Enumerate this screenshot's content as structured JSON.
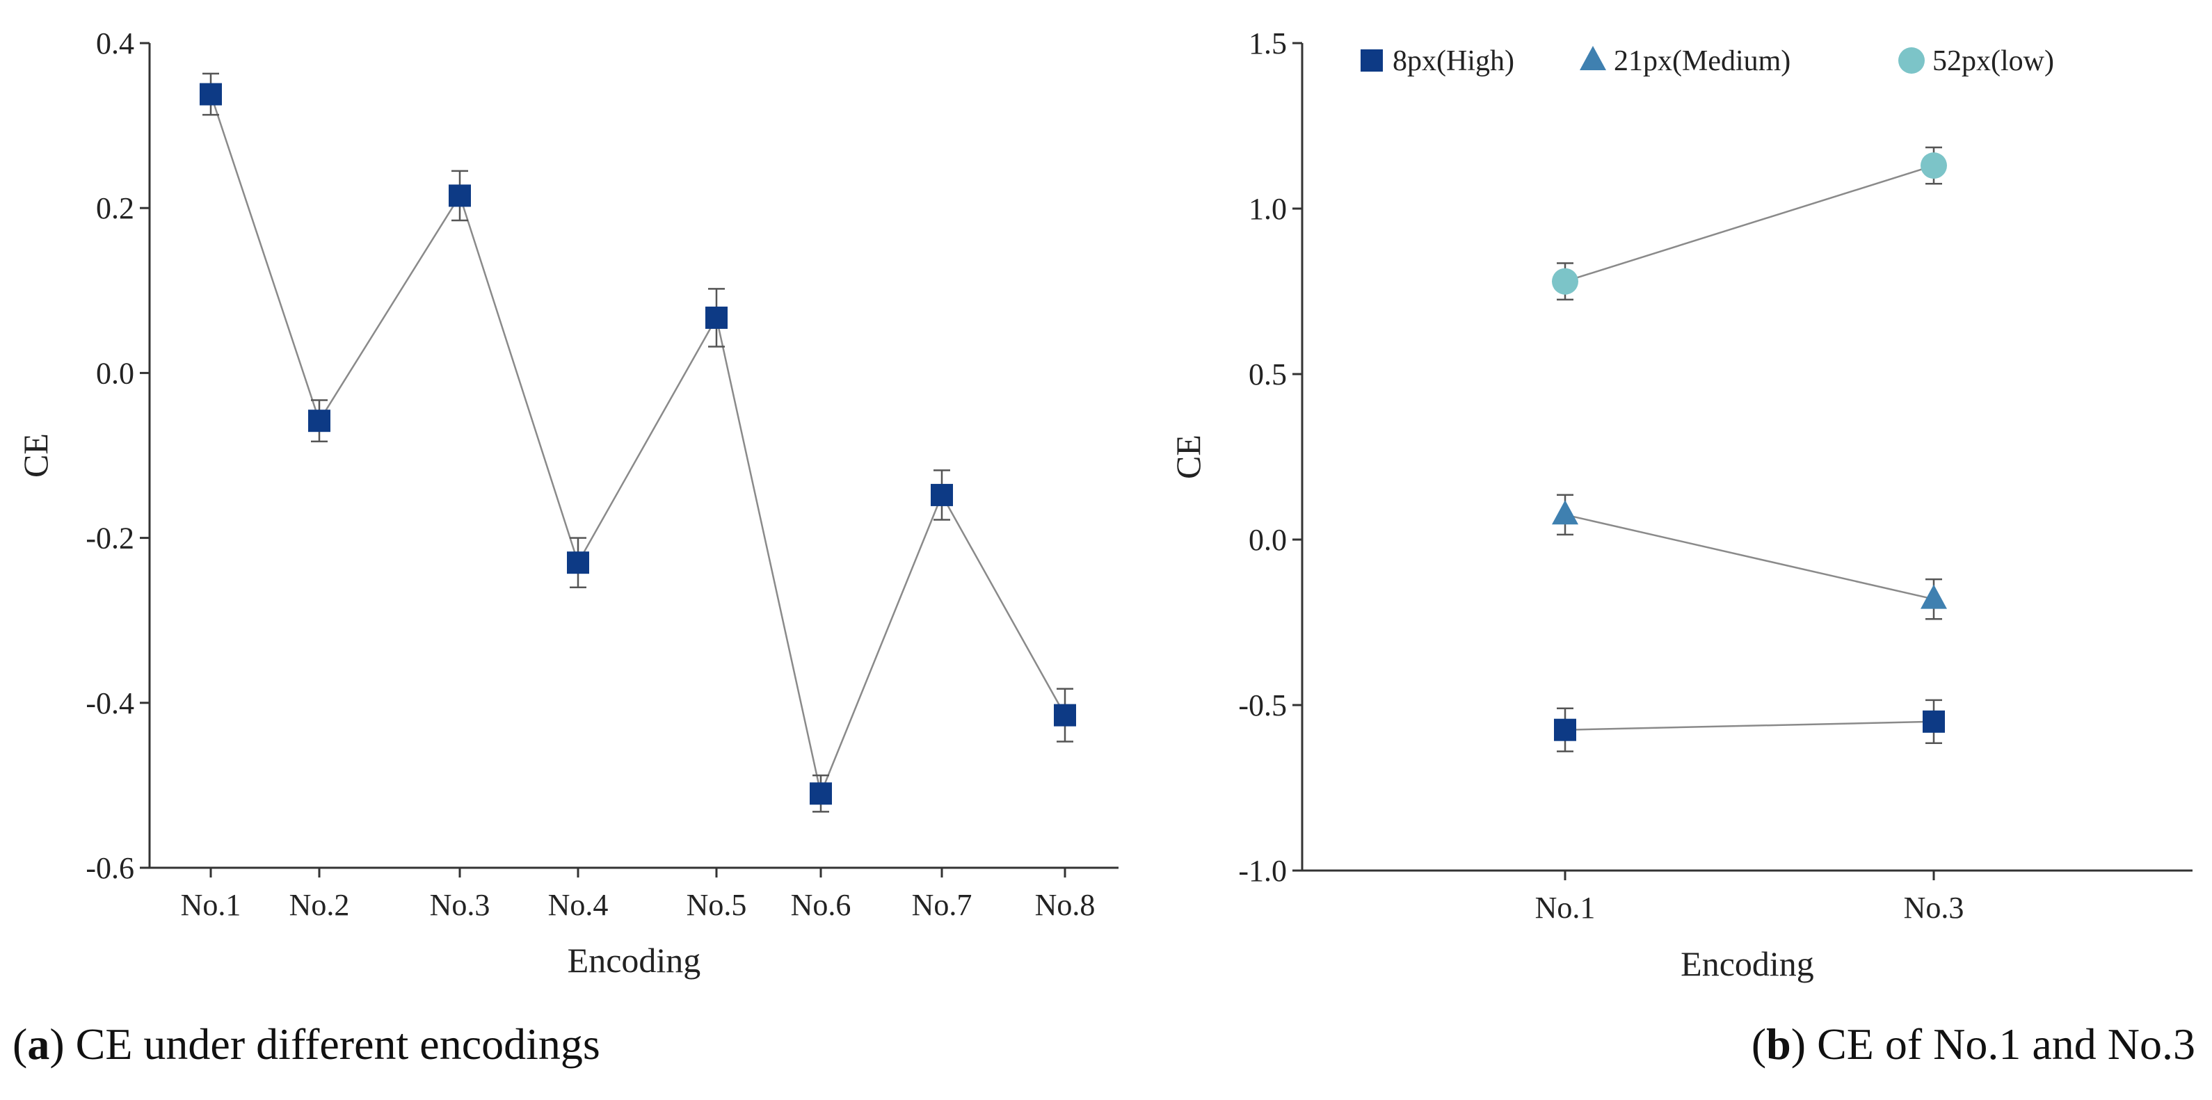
{
  "chart_data": [
    {
      "type": "line",
      "panel": "a",
      "xlabel": "Encoding",
      "ylabel": "CE",
      "ylim": [
        -0.6,
        0.4
      ],
      "yticks": [
        0.4,
        0.2,
        0.0,
        -0.2,
        -0.4,
        -0.6
      ],
      "ytick_labels": [
        "0.4",
        "0.2",
        "0.0",
        "-0.2",
        "-0.4",
        "-0.6"
      ],
      "categories": [
        "No.1",
        "No.2",
        "No.3",
        "No.4",
        "No.5",
        "No.6",
        "No.7",
        "No.8"
      ],
      "grid": false,
      "series": [
        {
          "name": "CE",
          "marker": "square",
          "color": "#0d3a85",
          "values": [
            0.338,
            -0.058,
            0.215,
            -0.23,
            0.067,
            -0.51,
            -0.148,
            -0.415
          ],
          "errors": [
            0.025,
            0.025,
            0.03,
            0.03,
            0.035,
            0.022,
            0.03,
            0.032
          ]
        }
      ]
    },
    {
      "type": "line",
      "panel": "b",
      "xlabel": "Encoding",
      "ylabel": "CE",
      "ylim": [
        -1.0,
        1.5
      ],
      "yticks": [
        1.5,
        1.0,
        0.5,
        0.0,
        -0.5,
        -1.0
      ],
      "ytick_labels": [
        "1.5",
        "1.0",
        "0.5",
        "0.0",
        "-0.5",
        "-1.0"
      ],
      "categories": [
        "No.1",
        "No.3"
      ],
      "grid": false,
      "legend_position": "top",
      "series": [
        {
          "name": "8px(High)",
          "marker": "square",
          "color": "#0d3a85",
          "values": [
            -0.575,
            -0.55
          ],
          "errors": [
            0.065,
            0.065
          ]
        },
        {
          "name": "21px(Medium)",
          "marker": "triangle",
          "color": "#3f80b0",
          "values": [
            0.075,
            -0.18
          ],
          "errors": [
            0.06,
            0.06
          ]
        },
        {
          "name": "52px(low)",
          "marker": "circle",
          "color": "#7cc4c8",
          "values": [
            0.78,
            1.13
          ],
          "errors": [
            0.055,
            0.055
          ]
        }
      ]
    }
  ],
  "captions": {
    "a": {
      "letter": "a",
      "text": " CE under different encodings"
    },
    "b": {
      "letter": "b",
      "text": " CE of No.1 and No.3"
    }
  },
  "colors": {
    "axis": "#333333",
    "connector": "#8a8a8a",
    "errorbar": "#555555"
  }
}
